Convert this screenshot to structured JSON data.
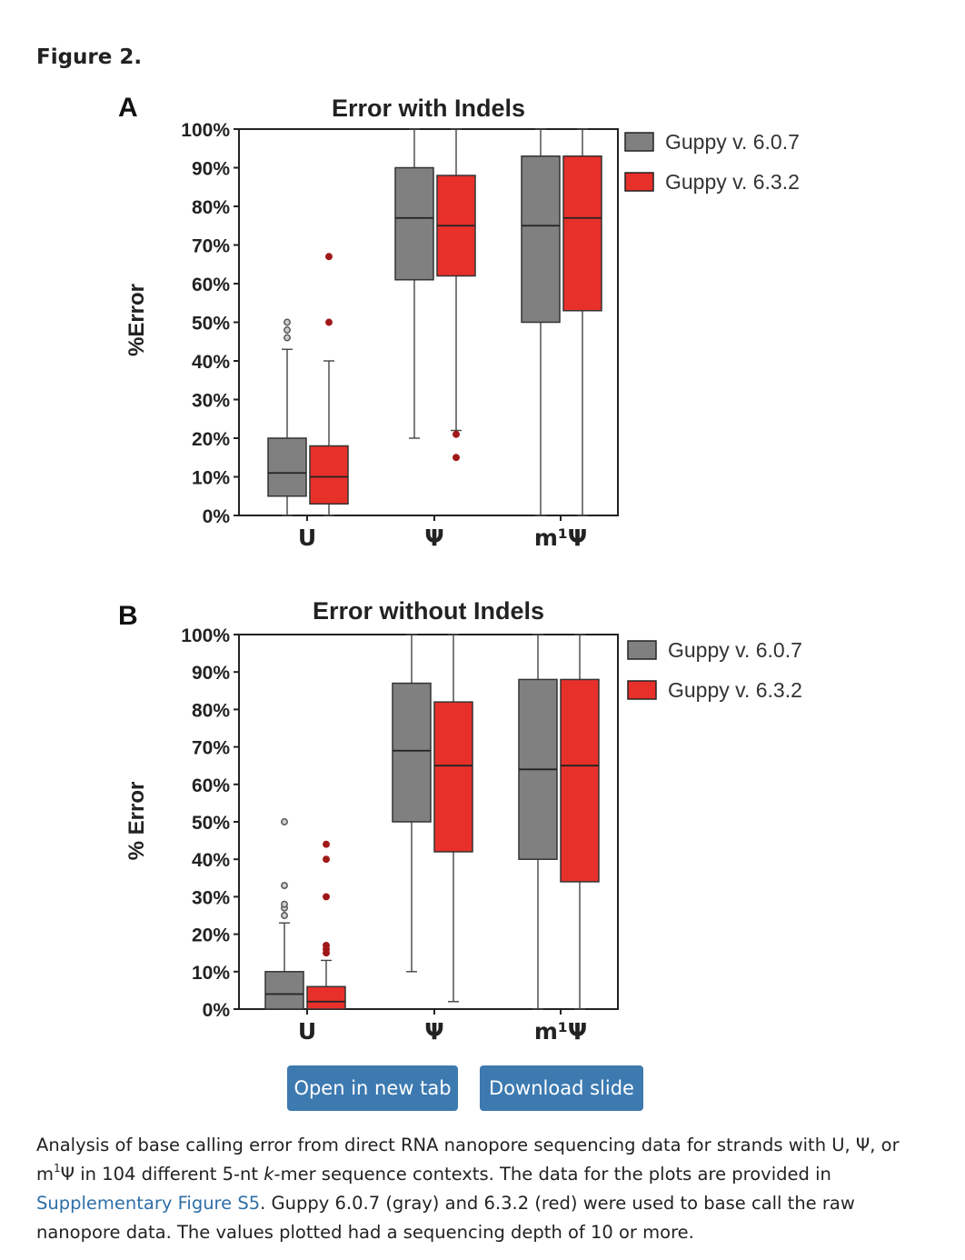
{
  "figure": {
    "label": "Figure 2."
  },
  "buttons": {
    "open_label": "Open in new tab",
    "download_label": "Download slide"
  },
  "caption": {
    "part1": "Analysis of base calling error from direct RNA nanopore sequencing data for strands with U, Ψ, or m",
    "sup": "1",
    "part2": "Ψ in 104 different 5-nt ",
    "italic": "k",
    "part3": "-mer sequence contexts. The data for the plots are provided in ",
    "link": "Supplementary Figure S5",
    "part4": ". Guppy 6.0.7 (gray) and 6.3.2 (red) were used to base call the raw nanopore data. The values plotted had a sequencing depth of 10 or more."
  },
  "colors": {
    "gray": "#808080",
    "red": "#e8302a",
    "outlier_gray": "#555555",
    "outlier_red": "#a01818",
    "button": "#3d7ab0",
    "link": "#2f6fa7"
  },
  "chart_data": [
    {
      "panel": "A",
      "type": "box",
      "title": "Error with Indels",
      "ylabel": "%Error",
      "xlabel": "",
      "ylim": [
        0,
        100
      ],
      "yticks": [
        "0%",
        "10%",
        "20%",
        "30%",
        "40%",
        "50%",
        "60%",
        "70%",
        "80%",
        "90%",
        "100%"
      ],
      "categories": [
        "U",
        "Ψ",
        "m¹Ψ"
      ],
      "legend": [
        "Guppy v. 6.0.7",
        "Guppy v. 6.3.2"
      ],
      "legend_position": "outside-right",
      "series": [
        {
          "name": "Guppy v. 6.0.7",
          "color": "gray",
          "boxes": [
            {
              "category": "U",
              "min": 0,
              "q1": 5,
              "median": 11,
              "q3": 20,
              "max": 43,
              "outliers": [
                46,
                48,
                50
              ]
            },
            {
              "category": "Ψ",
              "min": 20,
              "q1": 61,
              "median": 77,
              "q3": 90,
              "max": 100,
              "outliers": []
            },
            {
              "category": "m¹Ψ",
              "min": 0,
              "q1": 50,
              "median": 75,
              "q3": 93,
              "max": 100,
              "outliers": []
            }
          ]
        },
        {
          "name": "Guppy v. 6.3.2",
          "color": "red",
          "boxes": [
            {
              "category": "U",
              "min": 0,
              "q1": 3,
              "median": 10,
              "q3": 18,
              "max": 40,
              "outliers": [
                50,
                67
              ]
            },
            {
              "category": "Ψ",
              "min": 22,
              "q1": 62,
              "median": 75,
              "q3": 88,
              "max": 100,
              "outliers": [
                21,
                15
              ]
            },
            {
              "category": "m¹Ψ",
              "min": 0,
              "q1": 53,
              "median": 77,
              "q3": 93,
              "max": 100,
              "outliers": []
            }
          ]
        }
      ]
    },
    {
      "panel": "B",
      "type": "box",
      "title": "Error without Indels",
      "ylabel": "% Error",
      "xlabel": "",
      "ylim": [
        0,
        100
      ],
      "yticks": [
        "0%",
        "10%",
        "20%",
        "30%",
        "40%",
        "50%",
        "60%",
        "70%",
        "80%",
        "90%",
        "100%"
      ],
      "categories": [
        "U",
        "Ψ",
        "m¹Ψ"
      ],
      "legend": [
        "Guppy v. 6.0.7",
        "Guppy v. 6.3.2"
      ],
      "legend_position": "outside-right",
      "series": [
        {
          "name": "Guppy v. 6.0.7",
          "color": "gray",
          "boxes": [
            {
              "category": "U",
              "min": 0,
              "q1": 0,
              "median": 4,
              "q3": 10,
              "max": 23,
              "outliers": [
                25,
                27,
                28,
                33,
                50
              ]
            },
            {
              "category": "Ψ",
              "min": 10,
              "q1": 50,
              "median": 69,
              "q3": 87,
              "max": 100,
              "outliers": []
            },
            {
              "category": "m¹Ψ",
              "min": 0,
              "q1": 40,
              "median": 64,
              "q3": 88,
              "max": 100,
              "outliers": []
            }
          ]
        },
        {
          "name": "Guppy v. 6.3.2",
          "color": "red",
          "boxes": [
            {
              "category": "U",
              "min": 0,
              "q1": 0,
              "median": 2,
              "q3": 6,
              "max": 13,
              "outliers": [
                15,
                16,
                17,
                30,
                40,
                44
              ]
            },
            {
              "category": "Ψ",
              "min": 2,
              "q1": 42,
              "median": 65,
              "q3": 82,
              "max": 100,
              "outliers": []
            },
            {
              "category": "m¹Ψ",
              "min": 0,
              "q1": 34,
              "median": 65,
              "q3": 88,
              "max": 100,
              "outliers": []
            }
          ]
        }
      ]
    }
  ]
}
